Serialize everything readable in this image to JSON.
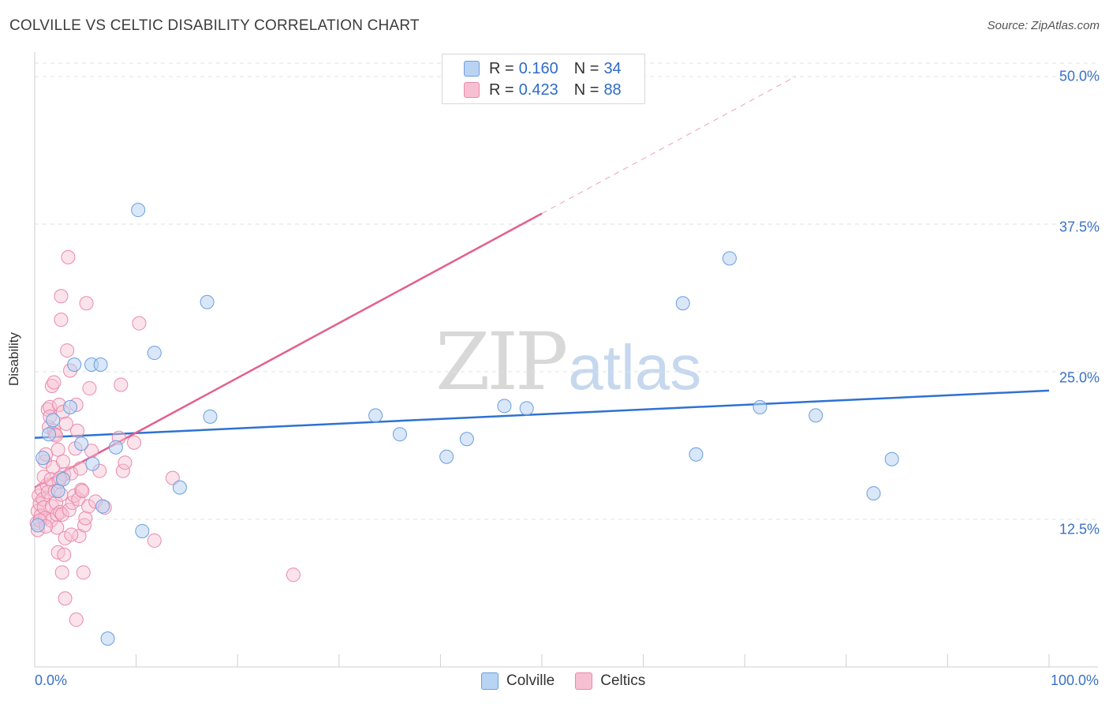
{
  "title": "COLVILLE VS CELTIC DISABILITY CORRELATION CHART",
  "source_label": "Source:",
  "source_value": "ZipAtlas.com",
  "watermark": {
    "zip": "ZIP",
    "atlas": "atlas"
  },
  "colors": {
    "colville_fill": "#b9d3f3",
    "colville_stroke": "#6a9fe0",
    "colville_line": "#2e72d2",
    "celtics_fill": "#f7c0d2",
    "celtics_stroke": "#e98aa9",
    "celtics_line": "#e2608e",
    "grid": "#e1e1e1",
    "axis_text": "#3a72c4"
  },
  "legend": {
    "rows": [
      {
        "r_label": "R =",
        "r_value": "0.160",
        "n_label": "N =",
        "n_value": "34"
      },
      {
        "r_label": "R =",
        "r_value": "0.423",
        "n_label": "N =",
        "n_value": "88"
      }
    ]
  },
  "bottom_legend": [
    "Colville",
    "Celtics"
  ],
  "chart_data": {
    "type": "scatter",
    "title": "COLVILLE VS CELTIC DISABILITY CORRELATION CHART",
    "xlabel": "",
    "ylabel": "Disability",
    "xlim": [
      0,
      100
    ],
    "ylim": [
      0,
      50
    ],
    "x_tick_labels": [
      "0.0%",
      "100.0%"
    ],
    "y_ticks": [
      12.5,
      25.0,
      37.5,
      50.0
    ],
    "y_tick_labels": [
      "12.5%",
      "25.0%",
      "37.5%",
      "50.0%"
    ],
    "grid": true,
    "series": [
      {
        "name": "Colville",
        "r": 0.16,
        "n": 34,
        "trend": {
          "x": [
            0,
            100
          ],
          "y": [
            19.4,
            23.4
          ]
        },
        "points": [
          [
            0.3,
            12.0
          ],
          [
            0.8,
            17.7
          ],
          [
            1.4,
            19.7
          ],
          [
            1.8,
            20.9
          ],
          [
            2.3,
            14.9
          ],
          [
            2.8,
            15.9
          ],
          [
            3.5,
            22.0
          ],
          [
            3.9,
            25.6
          ],
          [
            4.6,
            18.9
          ],
          [
            5.7,
            17.2
          ],
          [
            5.6,
            25.6
          ],
          [
            6.5,
            25.6
          ],
          [
            6.7,
            13.6
          ],
          [
            7.2,
            2.4
          ],
          [
            8.0,
            18.6
          ],
          [
            10.2,
            38.7
          ],
          [
            10.6,
            11.5
          ],
          [
            11.8,
            26.6
          ],
          [
            14.3,
            15.2
          ],
          [
            17.0,
            30.9
          ],
          [
            17.3,
            21.2
          ],
          [
            33.6,
            21.3
          ],
          [
            36.0,
            19.7
          ],
          [
            40.6,
            17.8
          ],
          [
            42.6,
            19.3
          ],
          [
            46.3,
            22.1
          ],
          [
            48.5,
            21.9
          ],
          [
            63.9,
            30.8
          ],
          [
            65.2,
            18.0
          ],
          [
            68.5,
            34.6
          ],
          [
            71.5,
            22.0
          ],
          [
            77.0,
            21.3
          ],
          [
            82.7,
            14.7
          ],
          [
            84.5,
            17.6
          ]
        ]
      },
      {
        "name": "Celtics",
        "r": 0.423,
        "n": 88,
        "trend": {
          "x": [
            0,
            50
          ],
          "y": [
            15.2,
            38.4
          ]
        },
        "trend_extension": {
          "x": [
            50,
            75
          ],
          "y": [
            38.4,
            50.0
          ]
        },
        "points": [
          [
            0.2,
            12.2
          ],
          [
            0.3,
            13.2
          ],
          [
            0.4,
            14.5
          ],
          [
            0.5,
            13.8
          ],
          [
            0.6,
            12.8
          ],
          [
            0.7,
            15.0
          ],
          [
            0.8,
            14.2
          ],
          [
            0.9,
            13.5
          ],
          [
            1.0,
            12.6
          ],
          [
            1.0,
            17.4
          ],
          [
            1.1,
            18.0
          ],
          [
            1.2,
            15.4
          ],
          [
            1.3,
            21.8
          ],
          [
            1.3,
            14.8
          ],
          [
            1.4,
            20.3
          ],
          [
            1.5,
            22.0
          ],
          [
            1.5,
            21.2
          ],
          [
            1.6,
            12.4
          ],
          [
            1.7,
            13.6
          ],
          [
            1.7,
            23.8
          ],
          [
            1.8,
            16.9
          ],
          [
            1.9,
            24.1
          ],
          [
            1.9,
            20.0
          ],
          [
            2.0,
            14.9
          ],
          [
            2.0,
            19.7
          ],
          [
            2.1,
            13.9
          ],
          [
            2.2,
            12.9
          ],
          [
            2.2,
            11.8
          ],
          [
            2.3,
            9.7
          ],
          [
            2.3,
            18.4
          ],
          [
            2.4,
            22.2
          ],
          [
            2.4,
            15.7
          ],
          [
            2.5,
            13.1
          ],
          [
            2.6,
            14.6
          ],
          [
            2.6,
            29.4
          ],
          [
            2.6,
            31.4
          ],
          [
            2.7,
            8.0
          ],
          [
            2.7,
            12.9
          ],
          [
            2.8,
            21.6
          ],
          [
            2.8,
            17.4
          ],
          [
            2.9,
            16.3
          ],
          [
            2.9,
            9.5
          ],
          [
            3.0,
            5.8
          ],
          [
            3.1,
            20.6
          ],
          [
            3.2,
            26.8
          ],
          [
            3.3,
            34.7
          ],
          [
            3.4,
            13.3
          ],
          [
            3.5,
            25.1
          ],
          [
            3.6,
            16.4
          ],
          [
            3.7,
            13.9
          ],
          [
            3.9,
            14.5
          ],
          [
            4.0,
            18.5
          ],
          [
            4.1,
            4.0
          ],
          [
            4.1,
            22.2
          ],
          [
            4.2,
            20.0
          ],
          [
            4.3,
            14.2
          ],
          [
            4.4,
            11.1
          ],
          [
            4.5,
            16.8
          ],
          [
            4.6,
            15.0
          ],
          [
            4.8,
            8.0
          ],
          [
            4.9,
            12.0
          ],
          [
            5.0,
            12.6
          ],
          [
            5.1,
            30.8
          ],
          [
            5.3,
            13.6
          ],
          [
            5.4,
            23.6
          ],
          [
            5.6,
            18.3
          ],
          [
            6.0,
            14.0
          ],
          [
            6.4,
            16.6
          ],
          [
            6.9,
            13.5
          ],
          [
            8.3,
            19.4
          ],
          [
            8.5,
            23.9
          ],
          [
            8.7,
            16.6
          ],
          [
            8.9,
            17.3
          ],
          [
            9.8,
            19.0
          ],
          [
            10.3,
            29.1
          ],
          [
            11.8,
            10.7
          ],
          [
            13.6,
            16.0
          ],
          [
            25.5,
            7.8
          ],
          [
            0.3,
            11.6
          ],
          [
            0.5,
            12.4
          ],
          [
            0.9,
            16.1
          ],
          [
            1.1,
            11.9
          ],
          [
            1.6,
            15.9
          ],
          [
            2.1,
            19.6
          ],
          [
            2.5,
            16.0
          ],
          [
            3.0,
            10.9
          ],
          [
            3.6,
            11.2
          ],
          [
            4.7,
            14.9
          ]
        ]
      }
    ]
  }
}
